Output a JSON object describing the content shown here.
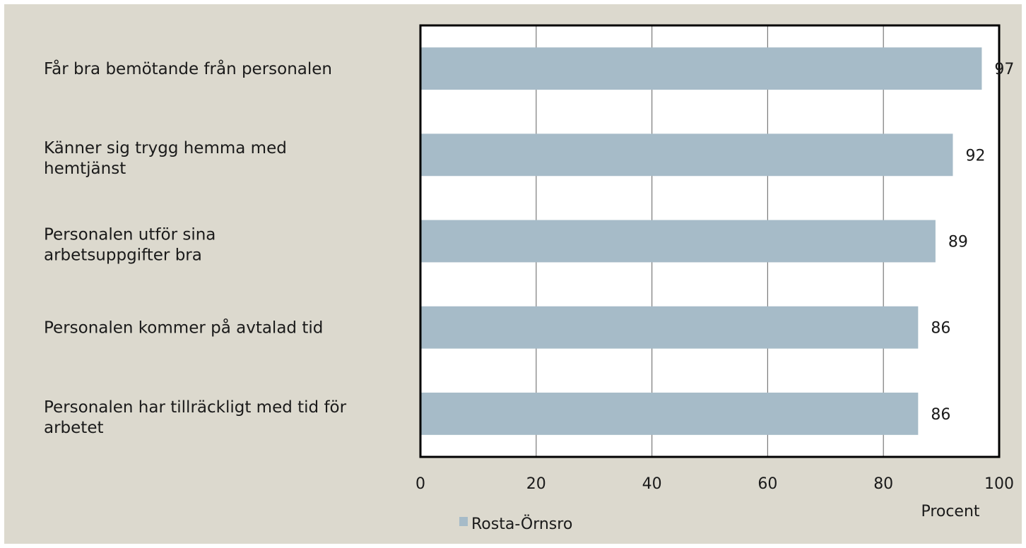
{
  "chart_data": {
    "type": "bar",
    "orientation": "horizontal",
    "title": "",
    "categories": [
      "Får bra bemötande från personalen",
      "Känner sig trygg hemma med hemtjänst",
      "Personalen utför sina arbetsuppgifter bra",
      "Personalen kommer på avtalad tid",
      "Personalen har tillräckligt med tid för arbetet"
    ],
    "category_lines": [
      [
        "Får bra bemötande från personalen"
      ],
      [
        "Känner sig trygg hemma med",
        "hemtjänst"
      ],
      [
        "Personalen utför sina",
        "arbetsuppgifter bra"
      ],
      [
        "Personalen kommer på avtalad tid"
      ],
      [
        "Personalen har tillräckligt med tid för",
        "arbetet"
      ]
    ],
    "series": [
      {
        "name": "Rosta-Örnsro",
        "values": [
          97,
          92,
          89,
          86,
          86
        ],
        "color": "#a6bbc8"
      }
    ],
    "data_labels": [
      "97",
      "92",
      "89",
      "86",
      "86"
    ],
    "xlabel": "Procent",
    "ylabel": "",
    "xlim": [
      0,
      100
    ],
    "x_ticks": [
      0,
      20,
      40,
      60,
      80,
      100
    ],
    "x_tick_labels": [
      "0",
      "20",
      "40",
      "60",
      "80",
      "100"
    ],
    "grid": "vertical",
    "legend_position": "bottom-left",
    "background_color": "#dcd9ce",
    "plot_background_color": "#ffffff",
    "grid_color": "#7a7a7a",
    "frame_color": "#000000"
  }
}
